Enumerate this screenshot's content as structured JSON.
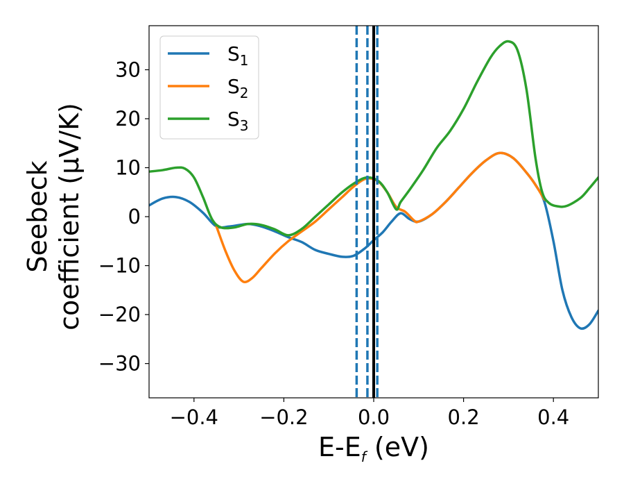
{
  "chart_data": {
    "type": "line",
    "xlabel_main": "E-E",
    "xlabel_sub": "f",
    "xlabel_unit": " (eV)",
    "ylabel_line1": "Seebeck",
    "ylabel_line2": "coefficient  (μV/K)",
    "xlim": [
      -0.5,
      0.5
    ],
    "ylim": [
      -37,
      39
    ],
    "xticks": [
      -0.4,
      -0.2,
      0.0,
      0.2,
      0.4
    ],
    "xtick_labels": [
      "−0.4",
      "−0.2",
      "0.0",
      "0.2",
      "0.4"
    ],
    "yticks": [
      -30,
      -20,
      -10,
      0,
      10,
      20,
      30
    ],
    "ytick_labels": [
      "−30",
      "−20",
      "−10",
      "0",
      "10",
      "20",
      "30"
    ],
    "legend_position": "top-left",
    "grid": false,
    "vertical_lines": [
      {
        "x": -0.038,
        "style": "dashed",
        "color": "#1f77b4"
      },
      {
        "x": -0.014,
        "style": "dashed",
        "color": "#1f77b4"
      },
      {
        "x": 0.008,
        "style": "dashed",
        "color": "#1f77b4"
      },
      {
        "x": 0.0,
        "style": "solid",
        "color": "#000000"
      }
    ],
    "series": [
      {
        "name": "S",
        "sub": "1",
        "color": "#1f77b4",
        "points": [
          [
            -0.5,
            2.3
          ],
          [
            -0.47,
            3.7
          ],
          [
            -0.44,
            4.0
          ],
          [
            -0.41,
            3.0
          ],
          [
            -0.38,
            0.8
          ],
          [
            -0.35,
            -2.0
          ],
          [
            -0.32,
            -2.0
          ],
          [
            -0.28,
            -1.5
          ],
          [
            -0.25,
            -2.0
          ],
          [
            -0.22,
            -3.0
          ],
          [
            -0.19,
            -4.2
          ],
          [
            -0.16,
            -5.2
          ],
          [
            -0.13,
            -6.8
          ],
          [
            -0.1,
            -7.6
          ],
          [
            -0.07,
            -8.2
          ],
          [
            -0.045,
            -8.0
          ],
          [
            -0.02,
            -6.5
          ],
          [
            0.0,
            -4.8
          ],
          [
            0.02,
            -3.2
          ],
          [
            0.04,
            -1.0
          ],
          [
            0.06,
            0.7
          ],
          [
            0.08,
            -0.5
          ],
          [
            0.1,
            -1.0
          ],
          [
            0.13,
            0.5
          ],
          [
            0.16,
            3.0
          ],
          [
            0.19,
            6.0
          ],
          [
            0.22,
            9.0
          ],
          [
            0.25,
            11.5
          ],
          [
            0.28,
            13.0
          ],
          [
            0.31,
            12.0
          ],
          [
            0.34,
            9.0
          ],
          [
            0.36,
            6.5
          ],
          [
            0.38,
            3.0
          ],
          [
            0.4,
            -5.0
          ],
          [
            0.42,
            -15.0
          ],
          [
            0.44,
            -20.5
          ],
          [
            0.46,
            -22.8
          ],
          [
            0.48,
            -22.0
          ],
          [
            0.5,
            -19.2
          ]
        ]
      },
      {
        "name": "S",
        "sub": "2",
        "color": "#ff7f0e",
        "points": [
          [
            -0.35,
            -2.0
          ],
          [
            -0.33,
            -7.0
          ],
          [
            -0.31,
            -11.0
          ],
          [
            -0.29,
            -13.3
          ],
          [
            -0.27,
            -12.5
          ],
          [
            -0.25,
            -10.5
          ],
          [
            -0.22,
            -7.5
          ],
          [
            -0.19,
            -5.0
          ],
          [
            -0.16,
            -3.0
          ],
          [
            -0.13,
            -1.0
          ],
          [
            -0.1,
            1.5
          ],
          [
            -0.07,
            4.0
          ],
          [
            -0.04,
            6.5
          ],
          [
            -0.015,
            7.8
          ],
          [
            0.01,
            7.2
          ],
          [
            0.03,
            5.0
          ],
          [
            0.05,
            2.0
          ],
          [
            0.07,
            1.0
          ],
          [
            0.09,
            -0.8
          ],
          [
            0.1,
            -1.0
          ],
          [
            0.13,
            0.5
          ],
          [
            0.16,
            3.0
          ],
          [
            0.19,
            6.0
          ],
          [
            0.22,
            9.0
          ],
          [
            0.25,
            11.5
          ],
          [
            0.28,
            13.0
          ],
          [
            0.31,
            12.0
          ],
          [
            0.34,
            9.0
          ],
          [
            0.36,
            6.5
          ],
          [
            0.38,
            3.5
          ]
        ]
      },
      {
        "name": "S",
        "sub": "3",
        "color": "#2ca02c",
        "points": [
          [
            -0.5,
            9.2
          ],
          [
            -0.47,
            9.5
          ],
          [
            -0.44,
            10.0
          ],
          [
            -0.42,
            9.8
          ],
          [
            -0.4,
            8.0
          ],
          [
            -0.38,
            4.0
          ],
          [
            -0.36,
            -0.5
          ],
          [
            -0.34,
            -2.2
          ],
          [
            -0.31,
            -2.2
          ],
          [
            -0.28,
            -1.5
          ],
          [
            -0.25,
            -1.7
          ],
          [
            -0.22,
            -2.6
          ],
          [
            -0.19,
            -3.8
          ],
          [
            -0.16,
            -2.5
          ],
          [
            -0.13,
            0.0
          ],
          [
            -0.1,
            2.5
          ],
          [
            -0.07,
            5.0
          ],
          [
            -0.04,
            7.0
          ],
          [
            -0.015,
            8.0
          ],
          [
            0.01,
            7.3
          ],
          [
            0.03,
            5.0
          ],
          [
            0.05,
            1.5
          ],
          [
            0.06,
            3.0
          ],
          [
            0.08,
            5.5
          ],
          [
            0.11,
            9.5
          ],
          [
            0.14,
            14.0
          ],
          [
            0.17,
            17.5
          ],
          [
            0.2,
            22.0
          ],
          [
            0.23,
            27.5
          ],
          [
            0.26,
            32.5
          ],
          [
            0.28,
            34.8
          ],
          [
            0.3,
            35.8
          ],
          [
            0.32,
            34.0
          ],
          [
            0.34,
            26.0
          ],
          [
            0.36,
            12.0
          ],
          [
            0.375,
            5.0
          ],
          [
            0.39,
            2.8
          ],
          [
            0.41,
            2.1
          ],
          [
            0.43,
            2.2
          ],
          [
            0.46,
            3.8
          ],
          [
            0.48,
            5.8
          ],
          [
            0.5,
            8.0
          ]
        ]
      }
    ]
  }
}
